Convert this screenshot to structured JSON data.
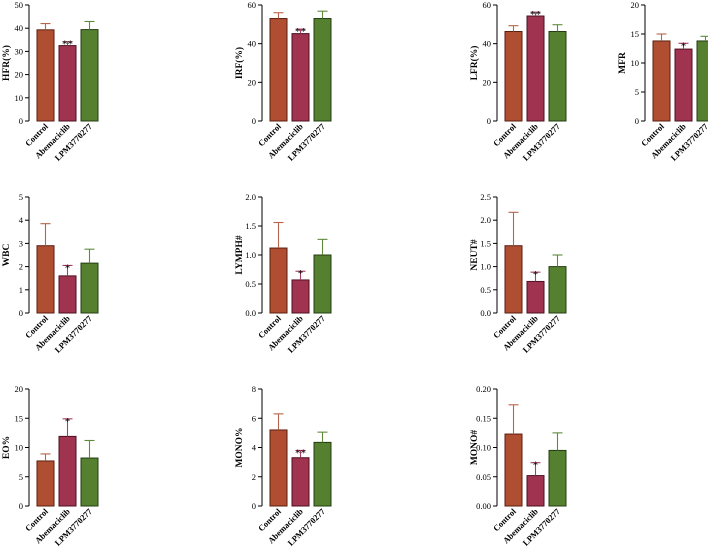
{
  "figure": {
    "categories": [
      "Control",
      "Abemaciclib",
      "LPM3770277"
    ]
  },
  "colors": {
    "bar_fill": [
      "#B04E32",
      "#A0334F",
      "#55802F"
    ],
    "bar_stroke": [
      "#5A1E0E",
      "#4E0F22",
      "#233D11"
    ],
    "error": [
      "#B5654A",
      "#A8405F",
      "#5E8A3A"
    ]
  },
  "chart_data": [
    {
      "type": "bar",
      "ylabel": "HFR(%)",
      "ylim": [
        0,
        50
      ],
      "yticks": [
        0,
        10,
        20,
        30,
        40,
        50
      ],
      "tick_labels": [
        "0",
        "10",
        "20",
        "30",
        "40",
        "50"
      ],
      "categories": [
        "Control",
        "Abemaciclib",
        "LPM3770277"
      ],
      "values": [
        39.3,
        32.5,
        39.4
      ],
      "errors": [
        2.7,
        1.7,
        3.5
      ],
      "significance": [
        "",
        "**",
        ""
      ]
    },
    {
      "type": "bar",
      "ylabel": "IRF(%)",
      "ylim": [
        0,
        60
      ],
      "yticks": [
        0,
        20,
        40,
        60
      ],
      "tick_labels": [
        "0",
        "20",
        "40",
        "60"
      ],
      "categories": [
        "Control",
        "Abemaciclib",
        "LPM3770277"
      ],
      "values": [
        53.0,
        45.2,
        53.0
      ],
      "errors": [
        3.0,
        2.3,
        3.8
      ],
      "significance": [
        "",
        "**",
        ""
      ]
    },
    {
      "type": "bar",
      "ylabel": "LFR(%)",
      "ylim": [
        0,
        60
      ],
      "yticks": [
        0,
        20,
        40,
        60
      ],
      "tick_labels": [
        "0",
        "20",
        "40",
        "60"
      ],
      "categories": [
        "Control",
        "Abemaciclib",
        "LPM3770277"
      ],
      "values": [
        46.3,
        54.3,
        46.3
      ],
      "errors": [
        3.0,
        2.0,
        3.5
      ],
      "significance": [
        "",
        "**",
        ""
      ]
    },
    {
      "type": "bar",
      "ylabel": "MFR",
      "ylim": [
        0,
        20
      ],
      "yticks": [
        0,
        5,
        10,
        15,
        20
      ],
      "tick_labels": [
        "0",
        "5",
        "10",
        "15",
        "20"
      ],
      "categories": [
        "Control",
        "Abemaciclib",
        "LPM3770277"
      ],
      "values": [
        13.8,
        12.4,
        13.8
      ],
      "errors": [
        1.2,
        1.0,
        0.8
      ],
      "significance": [
        "",
        "*",
        ""
      ]
    },
    {
      "type": "bar",
      "ylabel": "WBC",
      "ylim": [
        0,
        5
      ],
      "yticks": [
        0,
        1,
        2,
        3,
        4,
        5
      ],
      "tick_labels": [
        "0",
        "1",
        "2",
        "3",
        "4",
        "5"
      ],
      "categories": [
        "Control",
        "Abemaciclib",
        "LPM3770277"
      ],
      "values": [
        2.9,
        1.6,
        2.15
      ],
      "errors": [
        0.95,
        0.45,
        0.6
      ],
      "significance": [
        "",
        "*",
        ""
      ]
    },
    {
      "type": "bar",
      "ylabel": "LYMPH#",
      "ylim": [
        0,
        2.0
      ],
      "yticks": [
        0,
        0.5,
        1.0,
        1.5,
        2.0
      ],
      "tick_labels": [
        "0.0",
        "0.5",
        "1.0",
        "1.5",
        "2.0"
      ],
      "categories": [
        "Control",
        "Abemaciclib",
        "LPM3770277"
      ],
      "values": [
        1.12,
        0.57,
        1.0
      ],
      "errors": [
        0.44,
        0.15,
        0.27
      ],
      "significance": [
        "",
        "*",
        ""
      ]
    },
    {
      "type": "bar",
      "ylabel": "NEUT#",
      "ylim": [
        0,
        2.5
      ],
      "yticks": [
        0,
        0.5,
        1.0,
        1.5,
        2.0,
        2.5
      ],
      "tick_labels": [
        "0.0",
        "0.5",
        "1.0",
        "1.5",
        "2.0",
        "2.5"
      ],
      "categories": [
        "Control",
        "Abemaciclib",
        "LPM3770277"
      ],
      "values": [
        1.45,
        0.68,
        1.0
      ],
      "errors": [
        0.72,
        0.2,
        0.25
      ],
      "significance": [
        "",
        "*",
        ""
      ]
    },
    {
      "type": "bar",
      "ylabel": "EO%",
      "ylim": [
        0,
        20
      ],
      "yticks": [
        0,
        5,
        10,
        15,
        20
      ],
      "tick_labels": [
        "0",
        "5",
        "10",
        "15",
        "20"
      ],
      "categories": [
        "Control",
        "Abemaciclib",
        "LPM3770277"
      ],
      "values": [
        7.7,
        11.9,
        8.2
      ],
      "errors": [
        1.2,
        3.0,
        3.0
      ],
      "significance": [
        "",
        "*",
        ""
      ]
    },
    {
      "type": "bar",
      "ylabel": "MONO%",
      "ylim": [
        0,
        8
      ],
      "yticks": [
        0,
        2,
        4,
        6,
        8
      ],
      "tick_labels": [
        "0",
        "2",
        "4",
        "6",
        "8"
      ],
      "categories": [
        "Control",
        "Abemaciclib",
        "LPM3770277"
      ],
      "values": [
        5.2,
        3.3,
        4.35
      ],
      "errors": [
        1.1,
        0.5,
        0.7
      ],
      "significance": [
        "",
        "**",
        ""
      ]
    },
    {
      "type": "bar",
      "ylabel": "MONO#",
      "ylim": [
        0,
        0.2
      ],
      "yticks": [
        0,
        0.05,
        0.1,
        0.15,
        0.2
      ],
      "tick_labels": [
        "0.00",
        "0.05",
        "0.10",
        "0.15",
        "0.20"
      ],
      "categories": [
        "Control",
        "Abemaciclib",
        "LPM3770277"
      ],
      "values": [
        0.123,
        0.052,
        0.095
      ],
      "errors": [
        0.05,
        0.022,
        0.03
      ],
      "significance": [
        "",
        "*",
        ""
      ]
    }
  ]
}
